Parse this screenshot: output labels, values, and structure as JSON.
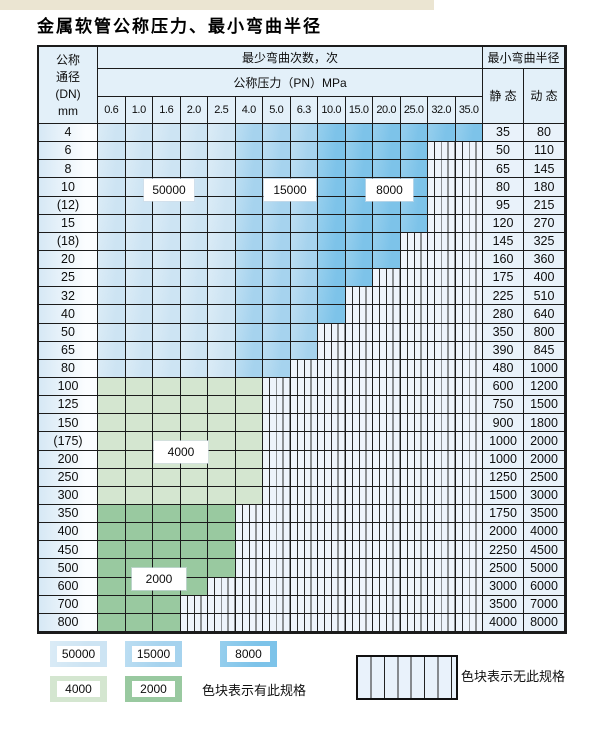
{
  "title": "金属软管公称压力、最小弯曲半径",
  "table": {
    "header": {
      "dn_lines": [
        "公称",
        "通径",
        "(DN)",
        "mm"
      ],
      "cycles_title": "最少弯曲次数，次",
      "pressure_title": "公称压力（PN）MPa",
      "pressures": [
        "0.6",
        "1.0",
        "1.6",
        "2.0",
        "2.5",
        "4.0",
        "5.0",
        "6.3",
        "10.0",
        "15.0",
        "20.0",
        "25.0",
        "32.0",
        "35.0"
      ],
      "radius_title": "最小弯曲半径",
      "static_label": "静 态",
      "dynamic_label": "动 态"
    },
    "blue_breaks": {
      "light_below": 5,
      "mid_below": 8
    },
    "overlays": [
      "50000",
      "15000",
      "8000",
      "4000",
      "2000"
    ],
    "rows": [
      {
        "dn": "4",
        "static": "35",
        "dynamic": "80",
        "colored": 14,
        "shade": "blue"
      },
      {
        "dn": "6",
        "static": "50",
        "dynamic": "110",
        "colored": 12,
        "shade": "blue"
      },
      {
        "dn": "8",
        "static": "65",
        "dynamic": "145",
        "colored": 12,
        "shade": "blue"
      },
      {
        "dn": "10",
        "static": "80",
        "dynamic": "180",
        "colored": 12,
        "shade": "blue"
      },
      {
        "dn": "(12)",
        "static": "95",
        "dynamic": "215",
        "colored": 12,
        "shade": "blue"
      },
      {
        "dn": "15",
        "static": "120",
        "dynamic": "270",
        "colored": 12,
        "shade": "blue"
      },
      {
        "dn": "(18)",
        "static": "145",
        "dynamic": "325",
        "colored": 11,
        "shade": "blue"
      },
      {
        "dn": "20",
        "static": "160",
        "dynamic": "360",
        "colored": 11,
        "shade": "blue"
      },
      {
        "dn": "25",
        "static": "175",
        "dynamic": "400",
        "colored": 10,
        "shade": "blue"
      },
      {
        "dn": "32",
        "static": "225",
        "dynamic": "510",
        "colored": 9,
        "shade": "blue"
      },
      {
        "dn": "40",
        "static": "280",
        "dynamic": "640",
        "colored": 9,
        "shade": "blue"
      },
      {
        "dn": "50",
        "static": "350",
        "dynamic": "800",
        "colored": 8,
        "shade": "blue"
      },
      {
        "dn": "65",
        "static": "390",
        "dynamic": "845",
        "colored": 8,
        "shade": "blue"
      },
      {
        "dn": "80",
        "static": "480",
        "dynamic": "1000",
        "colored": 7,
        "shade": "blue"
      },
      {
        "dn": "100",
        "static": "600",
        "dynamic": "1200",
        "colored": 6,
        "shade": "green-light"
      },
      {
        "dn": "125",
        "static": "750",
        "dynamic": "1500",
        "colored": 6,
        "shade": "green-light"
      },
      {
        "dn": "150",
        "static": "900",
        "dynamic": "1800",
        "colored": 6,
        "shade": "green-light"
      },
      {
        "dn": "(175)",
        "static": "1000",
        "dynamic": "2000",
        "colored": 6,
        "shade": "green-light"
      },
      {
        "dn": "200",
        "static": "1000",
        "dynamic": "2000",
        "colored": 6,
        "shade": "green-light"
      },
      {
        "dn": "250",
        "static": "1250",
        "dynamic": "2500",
        "colored": 6,
        "shade": "green-light"
      },
      {
        "dn": "300",
        "static": "1500",
        "dynamic": "3000",
        "colored": 6,
        "shade": "green-light"
      },
      {
        "dn": "350",
        "static": "1750",
        "dynamic": "3500",
        "colored": 5,
        "shade": "green-dark"
      },
      {
        "dn": "400",
        "static": "2000",
        "dynamic": "4000",
        "colored": 5,
        "shade": "green-dark"
      },
      {
        "dn": "450",
        "static": "2250",
        "dynamic": "4500",
        "colored": 5,
        "shade": "green-dark"
      },
      {
        "dn": "500",
        "static": "2500",
        "dynamic": "5000",
        "colored": 5,
        "shade": "green-dark"
      },
      {
        "dn": "600",
        "static": "3000",
        "dynamic": "6000",
        "colored": 4,
        "shade": "green-dark"
      },
      {
        "dn": "700",
        "static": "3500",
        "dynamic": "7000",
        "colored": 3,
        "shade": "green-dark"
      },
      {
        "dn": "800",
        "static": "4000",
        "dynamic": "8000",
        "colored": 3,
        "shade": "green-dark"
      }
    ]
  },
  "legend": {
    "items": [
      {
        "label": "50000",
        "shade": "blue-light"
      },
      {
        "label": "15000",
        "shade": "blue-mid"
      },
      {
        "label": "8000",
        "shade": "blue-dark"
      },
      {
        "label": "4000",
        "shade": "green-light"
      },
      {
        "label": "2000",
        "shade": "green-dark"
      }
    ],
    "has_spec_text": "色块表示有此规格",
    "no_spec_text": "色块表示无此规格"
  },
  "colors": {
    "blue_light": "#cde4f3",
    "blue_mid": "#a6d3ee",
    "blue_dark": "#7dc3e9",
    "green_light": "#d4e6d0",
    "green_dark": "#99c9a0",
    "header_bg": "#e3f0f9",
    "hatch_bg": "#eef4fb",
    "grid_line": "#1b1b1b",
    "top_strip": "#ebe5d2"
  }
}
